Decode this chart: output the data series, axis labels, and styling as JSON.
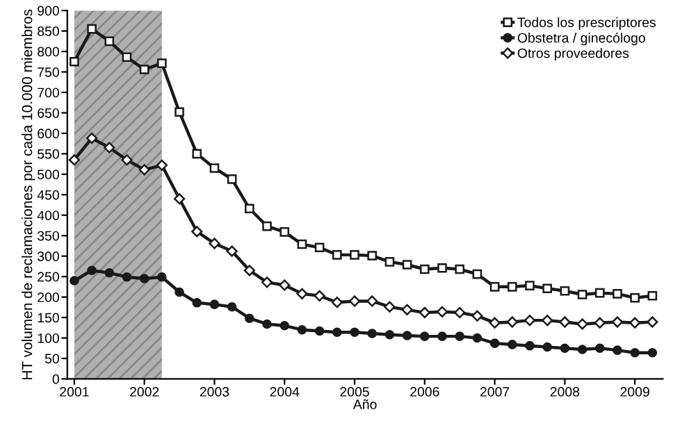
{
  "chart_data": {
    "type": "line",
    "xlabel": "Año",
    "ylabel": "HT volumen de reclamaciones por cada 10.000 miembros",
    "x": [
      2001,
      2001.25,
      2001.5,
      2001.75,
      2002,
      2002.25,
      2002.5,
      2002.75,
      2003,
      2003.25,
      2003.5,
      2003.75,
      2004,
      2004.25,
      2004.5,
      2004.75,
      2005,
      2005.25,
      2005.5,
      2005.75,
      2006,
      2006.25,
      2006.5,
      2006.75,
      2007,
      2007.25,
      2007.5,
      2007.75,
      2008,
      2008.25,
      2008.5,
      2008.75,
      2009,
      2009.25
    ],
    "series": [
      {
        "name": "Todos los prescriptores",
        "color": "#1a1a1a",
        "marker": "square",
        "values": [
          775,
          855,
          825,
          786,
          756,
          771,
          652,
          550,
          515,
          488,
          416,
          373,
          359,
          329,
          321,
          303,
          303,
          301,
          286,
          279,
          268,
          271,
          268,
          256,
          225,
          225,
          228,
          221,
          215,
          206,
          210,
          208,
          198,
          203
        ]
      },
      {
        "name": "Obstetra / ginecólogo",
        "color": "#1a1a1a",
        "marker": "circle",
        "values": [
          240,
          265,
          259,
          249,
          245,
          249,
          212,
          186,
          182,
          176,
          148,
          134,
          130,
          120,
          117,
          114,
          114,
          111,
          108,
          106,
          104,
          104,
          104,
          100,
          87,
          84,
          81,
          78,
          75,
          72,
          75,
          70,
          64,
          64
        ]
      },
      {
        "name": "Otros proveedores",
        "color": "#1a1a1a",
        "marker": "diamond",
        "values": [
          535,
          588,
          565,
          535,
          511,
          522,
          440,
          360,
          331,
          312,
          265,
          236,
          229,
          208,
          203,
          187,
          190,
          190,
          176,
          169,
          162,
          164,
          162,
          154,
          137,
          139,
          143,
          143,
          139,
          134,
          137,
          139,
          137,
          139
        ]
      }
    ],
    "bands": [
      {
        "axis": "x",
        "from": 2001,
        "to": 2002.25,
        "color": "#b0b0b0"
      }
    ],
    "xlim": [
      2000.9,
      2009.4
    ],
    "xticks": [
      2001,
      2002,
      2003,
      2004,
      2005,
      2006,
      2007,
      2008,
      2009
    ],
    "ylim": [
      0,
      900
    ],
    "yticks": [
      0,
      50,
      100,
      150,
      200,
      250,
      300,
      350,
      400,
      450,
      500,
      550,
      600,
      650,
      700,
      750,
      800,
      850,
      900
    ],
    "grid": false,
    "legend": "top right",
    "line_style": "solid"
  }
}
